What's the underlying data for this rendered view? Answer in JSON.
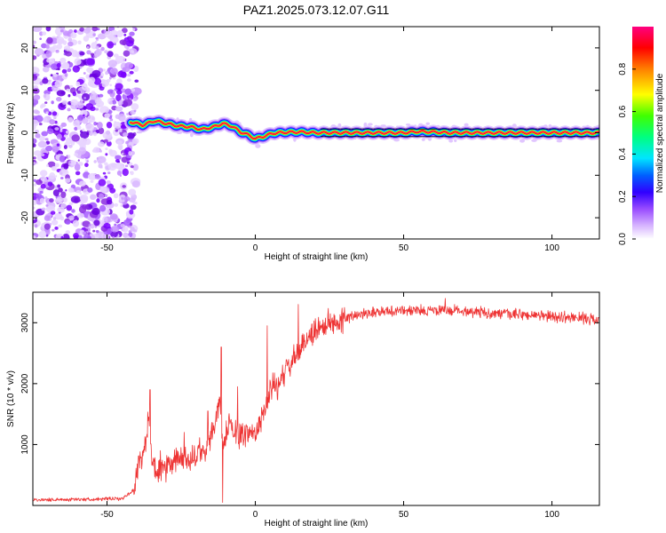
{
  "title": "PAZ1.2025.073.12.07.G11",
  "chart_data": [
    {
      "type": "heatmap",
      "xlabel": "Height of straight line (km)",
      "ylabel": "Frequency (Hz)",
      "xlim": [
        -75,
        116
      ],
      "ylim": [
        -25,
        25
      ],
      "xticks": [
        -50,
        0,
        50,
        100
      ],
      "yticks": [
        -20,
        -10,
        0,
        10,
        20
      ],
      "colorbar": {
        "label": "Normalized spectral amplitude",
        "range": [
          0,
          1
        ],
        "ticks": [
          "0.0",
          "0.2",
          "0.4",
          "0.6",
          "0.8"
        ],
        "colors": [
          "#ffffff",
          "#c89bff",
          "#7a00ff",
          "#0000ff",
          "#00e5ff",
          "#00ff00",
          "#ffff00",
          "#ff8000",
          "#ff0000",
          "#ff0080"
        ]
      },
      "track": {
        "x": [
          -42,
          -38,
          -34,
          -30,
          -26,
          -22,
          -18,
          -14,
          -11,
          -8,
          -5,
          -2,
          0,
          3,
          6,
          10,
          15,
          20,
          30,
          40,
          50,
          55,
          60,
          65,
          70,
          80,
          90,
          100,
          110,
          116
        ],
        "y": [
          2.6,
          1.8,
          2.8,
          2.2,
          1.6,
          1.4,
          0.8,
          1.4,
          2.2,
          1.6,
          0.2,
          -0.6,
          -1.4,
          -0.8,
          -0.1,
          0.1,
          0.2,
          0.0,
          0.0,
          0.0,
          0.0,
          0.3,
          0.2,
          0.0,
          0.0,
          0.0,
          0.0,
          0.0,
          0.0,
          0.0
        ]
      },
      "noise_region_x": [
        -75,
        -40
      ]
    },
    {
      "type": "line",
      "xlabel": "Height of straight line (km)",
      "ylabel": "SNR (10 * v/v)",
      "xlim": [
        -75,
        116
      ],
      "ylim": [
        0,
        3500
      ],
      "xticks": [
        -50,
        0,
        50,
        100
      ],
      "yticks": [
        1000,
        2000,
        3000
      ],
      "color": "#ee3333",
      "profile": {
        "x": [
          -75,
          -60,
          -45,
          -41,
          -39,
          -37,
          -36,
          -35,
          -33,
          -30,
          -26,
          -22,
          -19,
          -17,
          -14,
          -12,
          -11,
          -9,
          -7,
          -5,
          -3,
          0,
          2,
          4,
          6,
          8,
          10,
          13,
          16,
          18,
          21,
          25,
          30,
          35,
          40,
          50,
          60,
          70,
          80,
          90,
          100,
          110,
          116
        ],
        "y": [
          90,
          100,
          110,
          250,
          750,
          1000,
          1500,
          700,
          550,
          580,
          780,
          700,
          900,
          820,
          1300,
          1700,
          900,
          1350,
          1200,
          1150,
          1200,
          1200,
          1400,
          1700,
          2000,
          1950,
          2200,
          2400,
          2600,
          2800,
          2900,
          3000,
          3050,
          3150,
          3180,
          3200,
          3200,
          3200,
          3150,
          3130,
          3100,
          3080,
          3050
        ]
      },
      "spikes": [
        {
          "x": -35.5,
          "y": 1900
        },
        {
          "x": -32,
          "y": 900
        },
        {
          "x": -24,
          "y": 1200
        },
        {
          "x": -16,
          "y": 1550
        },
        {
          "x": -11.5,
          "y": 2600
        },
        {
          "x": -11,
          "y": 50
        },
        {
          "x": -6,
          "y": 1950
        },
        {
          "x": 4,
          "y": 2950
        },
        {
          "x": 14.5,
          "y": 3300
        },
        {
          "x": 30,
          "y": 3250
        },
        {
          "x": 64,
          "y": 3400
        }
      ],
      "noise_amplitude": [
        {
          "from": -75,
          "to": -41,
          "amp": 35
        },
        {
          "from": -41,
          "to": 30,
          "amp": 260
        },
        {
          "from": 30,
          "to": 116,
          "amp": 110
        }
      ]
    }
  ]
}
